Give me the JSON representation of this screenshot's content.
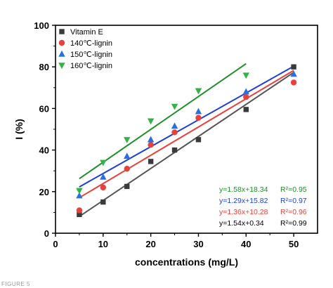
{
  "figure_caption": "FIGURE 5",
  "chart_data": {
    "type": "scatter",
    "xlabel": "concentrations (mg/L)",
    "ylabel": "I (%)",
    "xlim": [
      0,
      55
    ],
    "ylim": [
      0,
      100
    ],
    "x_ticks": [
      0,
      10,
      20,
      30,
      40,
      50
    ],
    "y_ticks": [
      0,
      20,
      40,
      60,
      80,
      100
    ],
    "grid": false,
    "legend_position": "top-left",
    "series": [
      {
        "name": "Vitamin E",
        "marker": "square",
        "color": "#3a3a3a",
        "x": [
          5,
          10,
          15,
          20,
          25,
          30,
          40,
          50
        ],
        "y": [
          9,
          15,
          22.5,
          34.5,
          40,
          45,
          59.5,
          80
        ],
        "fit": {
          "slope": 1.54,
          "intercept": 0.34,
          "x_range": [
            5,
            50
          ],
          "line_color": "#555555"
        },
        "equation": "y=1.54x+0.34",
        "r2": "R²=0.99",
        "equation_color": "#000000"
      },
      {
        "name": "140℃-lignin",
        "marker": "circle",
        "color": "#e8413c",
        "x": [
          5,
          10,
          15,
          20,
          25,
          30,
          40,
          50
        ],
        "y": [
          11,
          22,
          31,
          42.5,
          48.5,
          55.5,
          65.5,
          72.5
        ],
        "fit": {
          "slope": 1.36,
          "intercept": 10.28,
          "x_range": [
            5,
            50
          ],
          "line_color": "#e8413c"
        },
        "equation": "y=1.36x+10.28",
        "r2": "R²=0.96",
        "equation_color": "#e8413c"
      },
      {
        "name": "150℃-lignin",
        "marker": "triangle-up",
        "color": "#2a6fe0",
        "x": [
          5,
          10,
          15,
          20,
          25,
          30,
          40,
          50
        ],
        "y": [
          18,
          27,
          37,
          45,
          51.5,
          58.5,
          68,
          76.5
        ],
        "fit": {
          "slope": 1.29,
          "intercept": 15.82,
          "x_range": [
            5,
            50
          ],
          "line_color": "#1f3fd6"
        },
        "equation": "y=1.29x+15.82",
        "r2": "R²=0.97",
        "equation_color": "#1f3fd6"
      },
      {
        "name": "160℃-lignin",
        "marker": "triangle-down",
        "color": "#33b24a",
        "x": [
          5,
          10,
          15,
          20,
          25,
          30,
          40
        ],
        "y": [
          20.5,
          34,
          45,
          54,
          61,
          68.5,
          76
        ],
        "fit": {
          "slope": 1.58,
          "intercept": 18.34,
          "x_range": [
            5,
            40
          ],
          "line_color": "#1f8f2a"
        },
        "equation": "y=1.58x+18.34",
        "r2": "R²=0.95",
        "equation_color": "#1f8f2a"
      }
    ],
    "equation_order": [
      3,
      2,
      1,
      0
    ]
  }
}
